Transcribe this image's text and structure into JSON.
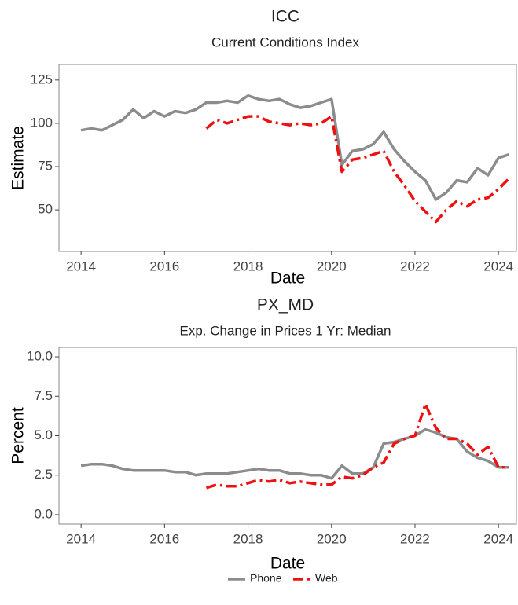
{
  "chart_data": [
    {
      "type": "line",
      "title": "ICC",
      "subtitle": "Current Conditions Index",
      "x_label": "Date",
      "y_label": "Estimate",
      "x": [
        2014.0,
        2014.25,
        2014.5,
        2014.75,
        2015.0,
        2015.25,
        2015.5,
        2015.75,
        2016.0,
        2016.25,
        2016.5,
        2016.75,
        2017.0,
        2017.25,
        2017.5,
        2017.75,
        2018.0,
        2018.25,
        2018.5,
        2018.75,
        2019.0,
        2019.25,
        2019.5,
        2019.75,
        2020.0,
        2020.25,
        2020.5,
        2020.75,
        2021.0,
        2021.25,
        2021.5,
        2021.75,
        2022.0,
        2022.25,
        2022.5,
        2022.75,
        2023.0,
        2023.25,
        2023.5,
        2023.75,
        2024.0,
        2024.25
      ],
      "series": [
        {
          "name": "Phone",
          "color": "#8c8c8c",
          "dash": "solid",
          "values": [
            96,
            97,
            96,
            99,
            102,
            108,
            103,
            107,
            104,
            107,
            106,
            108,
            112,
            112,
            113,
            112,
            116,
            114,
            113,
            114,
            111,
            109,
            110,
            112,
            114,
            76,
            84,
            85,
            88,
            95,
            85,
            78,
            72,
            67,
            56,
            60,
            67,
            66,
            74,
            70,
            80,
            82
          ]
        },
        {
          "name": "Web",
          "color": "#ee1111",
          "dash": "dashdot",
          "values": [
            null,
            null,
            null,
            null,
            null,
            null,
            null,
            null,
            null,
            null,
            null,
            null,
            97,
            102,
            100,
            102,
            104,
            104,
            101,
            100,
            99,
            100,
            99,
            100,
            104,
            72,
            79,
            80,
            82,
            84,
            72,
            64,
            55,
            49,
            43,
            50,
            55,
            52,
            56,
            57,
            62,
            68
          ]
        }
      ],
      "xlim": [
        2013.47,
        2024.43
      ],
      "xticks": [
        2014,
        2016,
        2018,
        2020,
        2022,
        2024
      ],
      "ylim": [
        26,
        134
      ],
      "yticks": [
        50,
        75,
        100,
        125
      ],
      "grid": false,
      "legend": "bottom"
    },
    {
      "type": "line",
      "title": "PX_MD",
      "subtitle": "Exp. Change in Prices 1 Yr: Median",
      "x_label": "Date",
      "y_label": "Percent",
      "x": [
        2014.0,
        2014.25,
        2014.5,
        2014.75,
        2015.0,
        2015.25,
        2015.5,
        2015.75,
        2016.0,
        2016.25,
        2016.5,
        2016.75,
        2017.0,
        2017.25,
        2017.5,
        2017.75,
        2018.0,
        2018.25,
        2018.5,
        2018.75,
        2019.0,
        2019.25,
        2019.5,
        2019.75,
        2020.0,
        2020.25,
        2020.5,
        2020.75,
        2021.0,
        2021.25,
        2021.5,
        2021.75,
        2022.0,
        2022.25,
        2022.5,
        2022.75,
        2023.0,
        2023.25,
        2023.5,
        2023.75,
        2024.0,
        2024.25
      ],
      "series": [
        {
          "name": "Phone",
          "color": "#8c8c8c",
          "dash": "solid",
          "values": [
            3.1,
            3.2,
            3.2,
            3.1,
            2.9,
            2.8,
            2.8,
            2.8,
            2.8,
            2.7,
            2.7,
            2.5,
            2.6,
            2.6,
            2.6,
            2.7,
            2.8,
            2.9,
            2.8,
            2.8,
            2.6,
            2.6,
            2.5,
            2.5,
            2.3,
            3.1,
            2.6,
            2.6,
            3.0,
            4.5,
            4.6,
            4.8,
            5.0,
            5.4,
            5.2,
            4.9,
            4.8,
            4.0,
            3.6,
            3.4,
            3.0,
            3.0
          ]
        },
        {
          "name": "Web",
          "color": "#ee1111",
          "dash": "dashdot",
          "values": [
            null,
            null,
            null,
            null,
            null,
            null,
            null,
            null,
            null,
            null,
            null,
            null,
            1.7,
            1.9,
            1.8,
            1.8,
            2.0,
            2.2,
            2.1,
            2.2,
            2.0,
            2.1,
            2.0,
            1.9,
            1.9,
            2.4,
            2.3,
            2.5,
            3.0,
            3.3,
            4.5,
            4.8,
            5.0,
            7.0,
            5.5,
            4.8,
            4.8,
            4.5,
            3.8,
            4.3,
            3.0,
            3.0
          ]
        }
      ],
      "xlim": [
        2013.47,
        2024.43
      ],
      "xticks": [
        2014,
        2016,
        2018,
        2020,
        2022,
        2024
      ],
      "ylim": [
        -0.6,
        10.6
      ],
      "yticks": [
        {
          "value": 0,
          "label": "0.0"
        },
        2.5,
        {
          "value": 5,
          "label": "5.0"
        },
        7.5,
        {
          "value": 10,
          "label": "10.0"
        }
      ],
      "grid": false,
      "legend": "bottom"
    }
  ]
}
